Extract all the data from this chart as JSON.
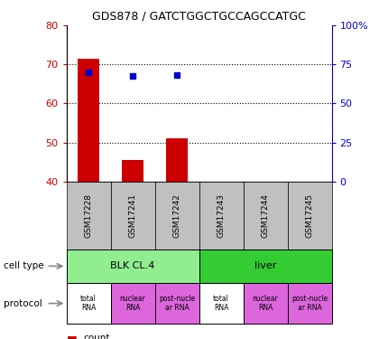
{
  "title": "GDS878 / GATCTGGCTGCCAGCCATGC",
  "samples": [
    "GSM17228",
    "GSM17241",
    "GSM17242",
    "GSM17243",
    "GSM17244",
    "GSM17245"
  ],
  "count_values": [
    71.5,
    45.5,
    51.0,
    0,
    0,
    0
  ],
  "percentile_values": [
    70.0,
    67.5,
    68.0,
    null,
    null,
    null
  ],
  "ylim_left": [
    40,
    80
  ],
  "ylim_right": [
    0,
    100
  ],
  "yticks_left": [
    40,
    50,
    60,
    70,
    80
  ],
  "yticks_right": [
    0,
    25,
    50,
    75,
    100
  ],
  "ytick_right_labels": [
    "0",
    "25",
    "50",
    "75",
    "100%"
  ],
  "cell_type_groups": [
    {
      "label": "BLK CL.4",
      "start": 0,
      "end": 3,
      "color": "#90EE90"
    },
    {
      "label": "liver",
      "start": 3,
      "end": 6,
      "color": "#33CC33"
    }
  ],
  "protocol_labels": [
    "total\nRNA",
    "nuclear\nRNA",
    "post-nucle\nar RNA",
    "total\nRNA",
    "nuclear\nRNA",
    "post-nucle\nar RNA"
  ],
  "protocol_colors": [
    "#ffffff",
    "#DD66DD",
    "#DD66DD",
    "#ffffff",
    "#DD66DD",
    "#DD66DD"
  ],
  "bar_color": "#CC0000",
  "percentile_color": "#0000CC",
  "axis_left_color": "#CC0000",
  "axis_right_color": "#0000CC",
  "sample_bg_color": "#C0C0C0",
  "dotted_yticks": [
    50,
    60,
    70
  ],
  "bar_width": 0.5
}
